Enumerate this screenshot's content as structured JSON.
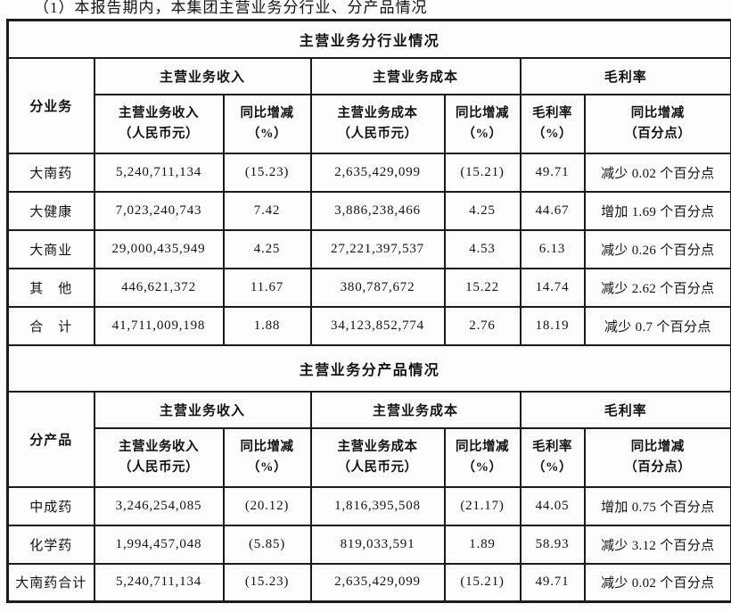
{
  "page_heading": "（1）本报告期内，本集团主营业务分行业、分产品情况",
  "tables": [
    {
      "title": "主营业务分行业情况",
      "row_header_label": "分业务",
      "col_groups": [
        "主营业务收入",
        "主营业务成本",
        "毛利率"
      ],
      "sub_headers": [
        {
          "l1": "主营业务收入",
          "l2": "（人民币元）"
        },
        {
          "l1": "同比增减",
          "l2": "（%）"
        },
        {
          "l1": "主营业务成本",
          "l2": "（人民币元）"
        },
        {
          "l1": "同比增减",
          "l2": "（%）"
        },
        {
          "l1": "毛利率",
          "l2": "（%）"
        },
        {
          "l1": "同比增减",
          "l2": "（百分点）"
        }
      ],
      "rows": [
        [
          "大南药",
          "5,240,711,134",
          "(15.23)",
          "2,635,429,099",
          "(15.21)",
          "49.71",
          "减少 0.02 个百分点"
        ],
        [
          "大健康",
          "7,023,240,743",
          "7.42",
          "3,886,238,466",
          "4.25",
          "44.67",
          "增加 1.69 个百分点"
        ],
        [
          "大商业",
          "29,000,435,949",
          "4.25",
          "27,221,397,537",
          "4.53",
          "6.13",
          "减少 0.26 个百分点"
        ],
        [
          "其　他",
          "446,621,372",
          "11.67",
          "380,787,672",
          "15.22",
          "14.74",
          "减少 2.62 个百分点"
        ],
        [
          "合　计",
          "41,711,009,198",
          "1.88",
          "34,123,852,774",
          "2.76",
          "18.19",
          "减少 0.7 个百分点"
        ]
      ]
    },
    {
      "title": "主营业务分产品情况",
      "row_header_label": "分产品",
      "col_groups": [
        "主营业务收入",
        "主营业务成本",
        "毛利率"
      ],
      "sub_headers": [
        {
          "l1": "主营业务收入",
          "l2": "（人民币元）"
        },
        {
          "l1": "同比增减",
          "l2": "（%）"
        },
        {
          "l1": "主营业务成本",
          "l2": "（人民币元）"
        },
        {
          "l1": "同比增减",
          "l2": "（%）"
        },
        {
          "l1": "毛利率",
          "l2": "（%）"
        },
        {
          "l1": "同比增减",
          "l2": "（百分点）"
        }
      ],
      "rows": [
        [
          "中成药",
          "3,246,254,085",
          "(20.12)",
          "1,816,395,508",
          "(21.17)",
          "44.05",
          "增加 0.75 个百分点"
        ],
        [
          "化学药",
          "1,994,457,048",
          "(5.85)",
          "819,033,591",
          "1.89",
          "58.93",
          "减少 3.12 个百分点"
        ],
        [
          "大南药合计",
          "5,240,711,134",
          "(15.23)",
          "2,635,429,099",
          "(15.21)",
          "49.71",
          "减少 0.02 个百分点"
        ]
      ]
    }
  ]
}
